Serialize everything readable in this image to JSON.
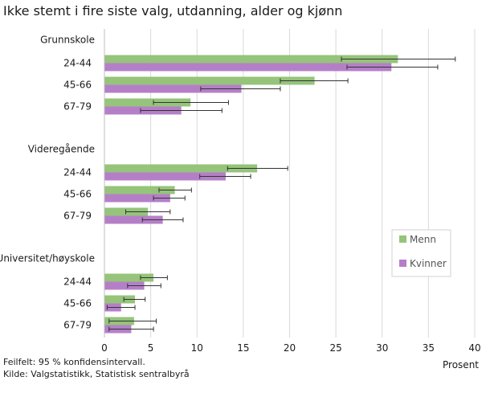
{
  "chart_data": {
    "type": "bar",
    "orientation": "horizontal",
    "title": "Ikke stemt i fire siste valg, utdanning, alder og kjønn",
    "xlabel": "Prosent",
    "ylabel": "",
    "xlim": [
      0,
      40
    ],
    "xticks": [
      0,
      5,
      10,
      15,
      20,
      25,
      30,
      35,
      40
    ],
    "grid": true,
    "legend_position": "right",
    "groups": [
      {
        "name": "Grunnskole",
        "categories": [
          "24-44",
          "45-66",
          "67-79"
        ]
      },
      {
        "name": "Videregående",
        "categories": [
          "24-44",
          "45-66",
          "67-79"
        ]
      },
      {
        "name": "Universitet/høyskole",
        "categories": [
          "24-44",
          "45-66",
          "67-79"
        ]
      }
    ],
    "series": [
      {
        "name": "Menn",
        "color": "#95c47a",
        "values": [
          31.7,
          22.7,
          9.3,
          16.5,
          7.6,
          4.7,
          5.3,
          3.3,
          3.2
        ],
        "ci_low": [
          25.6,
          19.0,
          5.3,
          13.3,
          5.9,
          2.3,
          3.9,
          2.1,
          0.5
        ],
        "ci_high": [
          37.9,
          26.3,
          13.4,
          19.8,
          9.4,
          7.1,
          6.8,
          4.4,
          5.6
        ]
      },
      {
        "name": "Kvinner",
        "color": "#b57fc8",
        "values": [
          31.0,
          14.8,
          8.3,
          13.1,
          7.1,
          6.3,
          4.3,
          1.8,
          2.9
        ],
        "ci_low": [
          26.2,
          10.4,
          3.9,
          10.3,
          5.3,
          4.1,
          2.5,
          0.3,
          0.5
        ],
        "ci_high": [
          36.0,
          19.0,
          12.7,
          15.8,
          8.7,
          8.5,
          6.1,
          3.3,
          5.3
        ]
      }
    ]
  },
  "footnotes": {
    "line1": "Feilfelt: 95 % konfidensintervall.",
    "line2": "Kilde: Valgstatistikk, Statistisk sentralbyrå"
  }
}
